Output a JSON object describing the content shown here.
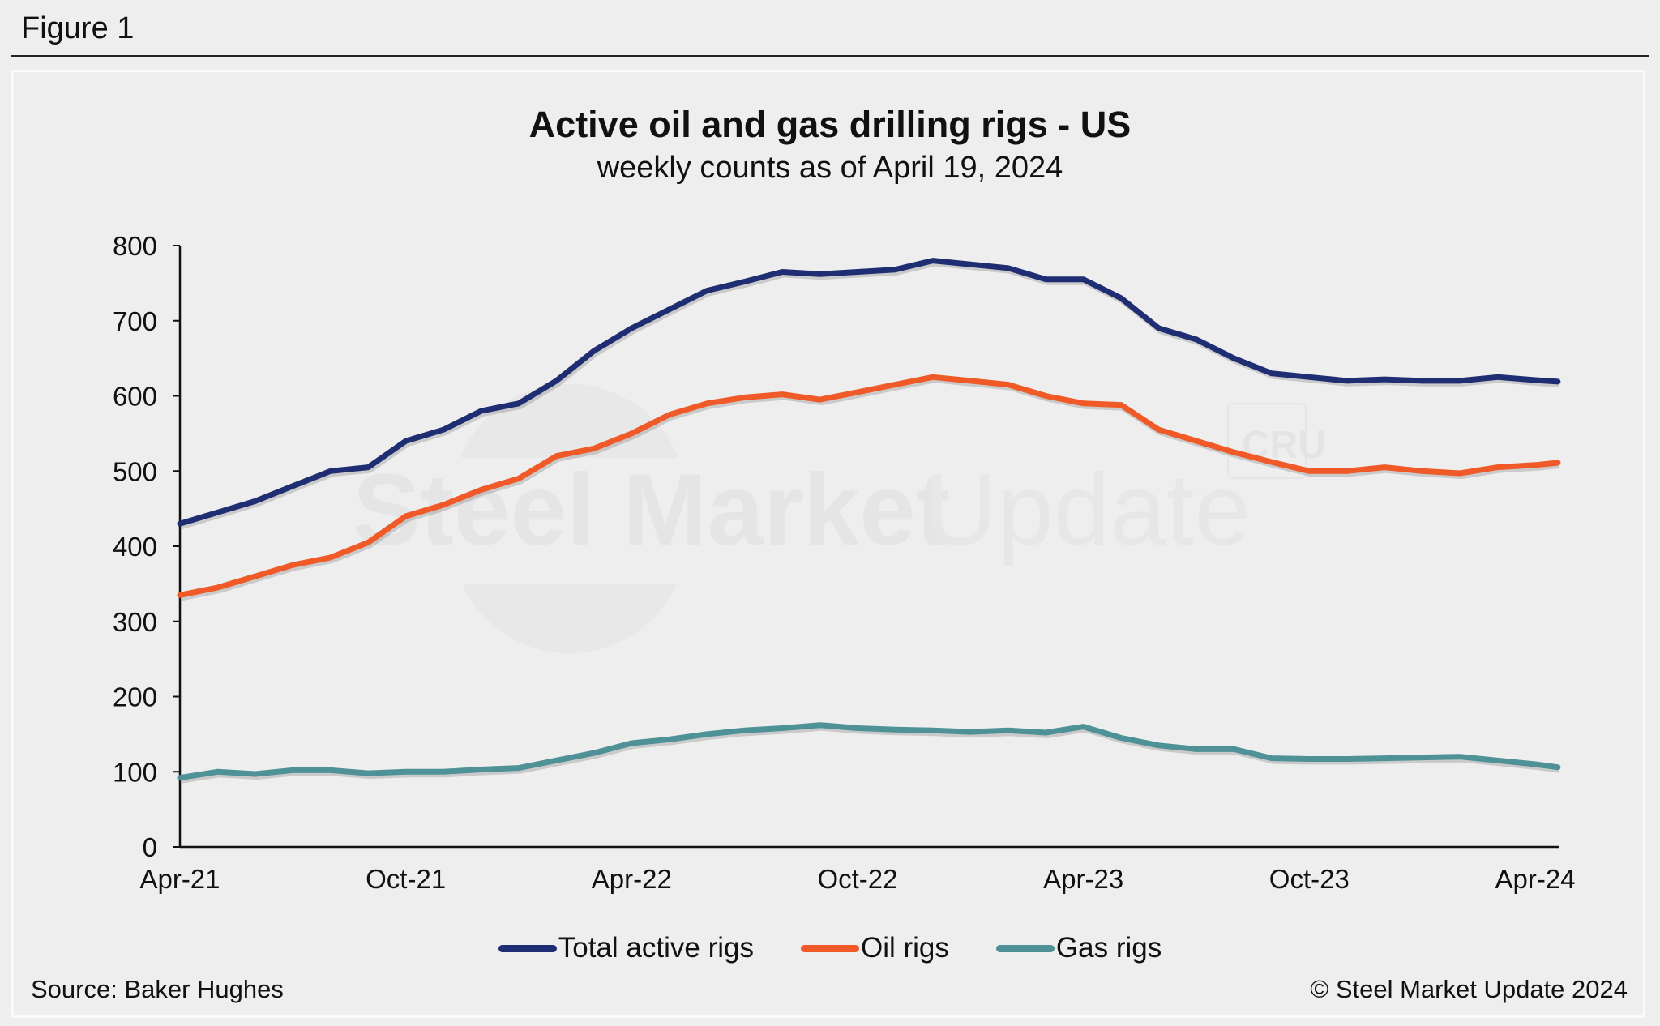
{
  "figure_label": "Figure 1",
  "source": "Source: Baker Hughes",
  "copyright": "© Steel Market Update 2024",
  "watermark": {
    "text_bold": "Steel Market",
    "text_light": "Update",
    "badge": "CRU"
  },
  "chart_data": {
    "type": "line",
    "title": "Active oil and gas drilling rigs - US",
    "subtitle": "weekly counts as of April 19, 2024",
    "xlabel": "",
    "ylabel": "",
    "x": [
      0,
      1,
      2,
      3,
      4,
      5,
      6,
      7,
      8,
      9,
      10,
      11,
      12,
      13,
      14,
      15,
      16,
      17,
      18,
      19,
      20,
      21,
      22,
      23,
      24,
      25,
      26,
      27,
      28,
      29,
      30,
      31,
      32,
      33,
      34,
      35,
      36,
      36.6
    ],
    "x_ticks": [
      0,
      6,
      12,
      18,
      24,
      30,
      36
    ],
    "x_tick_labels": [
      "Apr-21",
      "Oct-21",
      "Apr-22",
      "Oct-22",
      "Apr-23",
      "Oct-23",
      "Apr-24"
    ],
    "ylim": [
      0,
      800
    ],
    "y_ticks": [
      0,
      100,
      200,
      300,
      400,
      500,
      600,
      700,
      800
    ],
    "y_tick_labels": [
      "0",
      "100",
      "200",
      "300",
      "400",
      "500",
      "600",
      "700",
      "800"
    ],
    "grid": false,
    "legend_position": "bottom",
    "series": [
      {
        "name": "Total active rigs",
        "color": "#1f2d73",
        "values": [
          430,
          445,
          460,
          480,
          500,
          505,
          540,
          555,
          580,
          590,
          620,
          660,
          690,
          715,
          740,
          752,
          765,
          762,
          765,
          768,
          780,
          775,
          770,
          755,
          755,
          730,
          690,
          675,
          650,
          630,
          625,
          620,
          622,
          620,
          620,
          625,
          621,
          619
        ]
      },
      {
        "name": "Oil rigs",
        "color": "#f05a28",
        "values": [
          335,
          345,
          360,
          375,
          385,
          405,
          440,
          455,
          475,
          490,
          520,
          530,
          550,
          575,
          590,
          598,
          602,
          595,
          605,
          615,
          625,
          620,
          615,
          600,
          590,
          588,
          555,
          540,
          525,
          512,
          500,
          500,
          505,
          500,
          497,
          505,
          508,
          511
        ]
      },
      {
        "name": "Gas rigs",
        "color": "#4e9196",
        "values": [
          92,
          100,
          97,
          102,
          102,
          98,
          100,
          100,
          103,
          105,
          115,
          125,
          138,
          143,
          150,
          155,
          158,
          162,
          158,
          156,
          155,
          153,
          155,
          152,
          160,
          145,
          135,
          130,
          130,
          118,
          117,
          117,
          118,
          119,
          120,
          115,
          110,
          106
        ]
      }
    ]
  }
}
